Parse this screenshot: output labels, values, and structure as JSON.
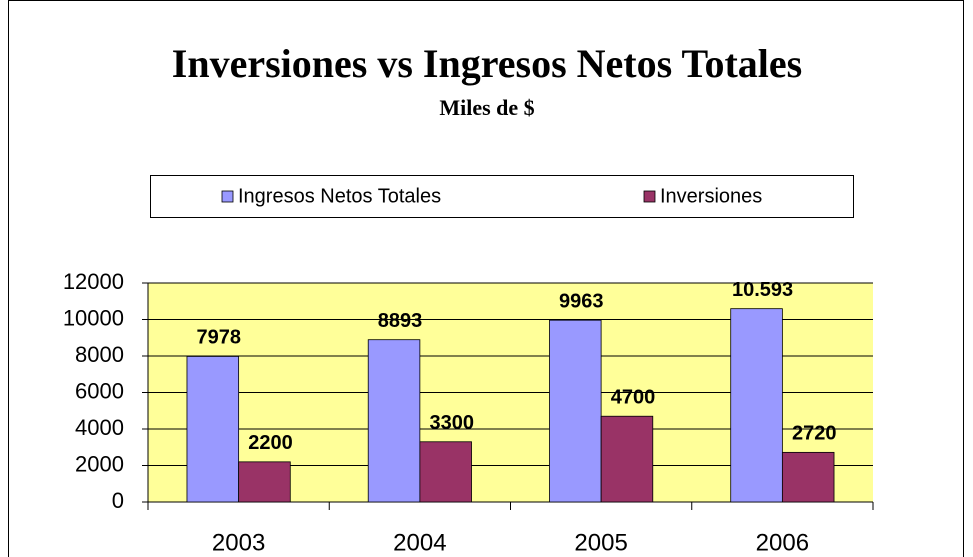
{
  "chart_data": {
    "type": "bar",
    "title": "Inversiones vs Ingresos Netos Totales",
    "subtitle": "Miles de $",
    "categories": [
      "2003",
      "2004",
      "2005",
      "2006"
    ],
    "series": [
      {
        "name": "Ingresos Netos Totales",
        "color": "#9999ff",
        "values": [
          7978,
          8893,
          9963,
          10593
        ],
        "value_labels": [
          "7978",
          "8893",
          "9963",
          "10.593"
        ]
      },
      {
        "name": "Inversiones",
        "color": "#993366",
        "values": [
          2200,
          3300,
          4700,
          2720
        ]
      }
    ],
    "ylim": [
      0,
      12000
    ],
    "yticks": [
      0,
      2000,
      4000,
      6000,
      8000,
      10000,
      12000
    ],
    "grid": true,
    "legend": "top",
    "plot_background": "#ffff99"
  }
}
